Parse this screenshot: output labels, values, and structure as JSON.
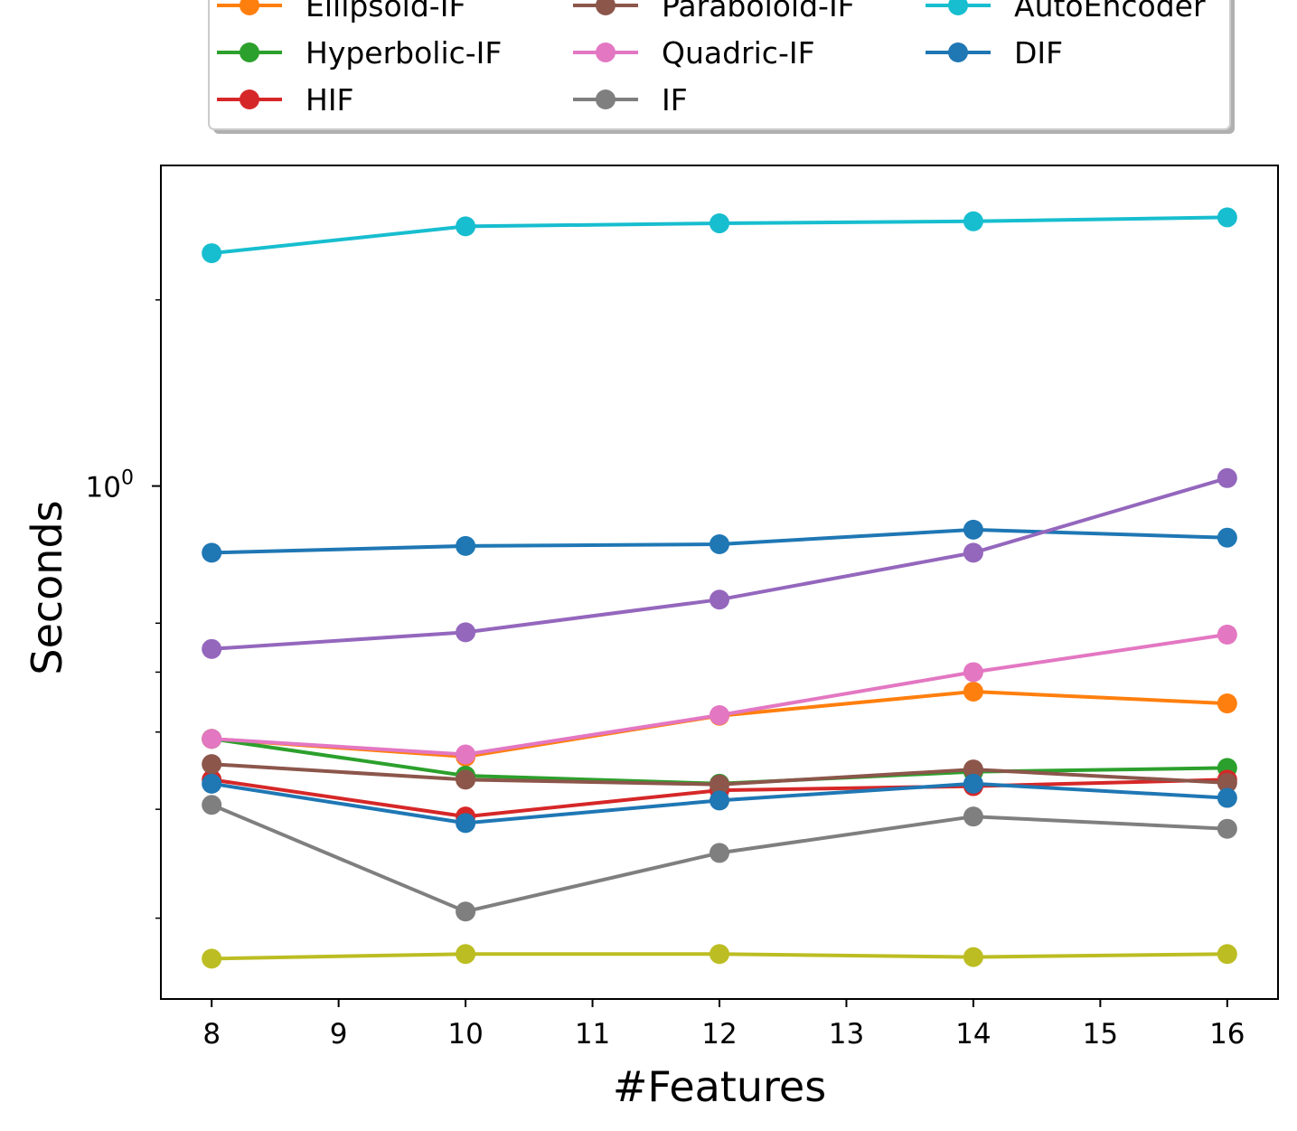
{
  "chart_data": {
    "type": "line",
    "xlabel": "#Features",
    "ylabel": "Seconds",
    "yscale": "log",
    "xlim": [
      7.6,
      16.4
    ],
    "ylim": [
      0.148,
      3.3
    ],
    "x_ticks": [
      "8",
      "9",
      "10",
      "11",
      "12",
      "13",
      "14",
      "15",
      "16"
    ],
    "y_major_ticks": [
      {
        "value": 1,
        "base": "10",
        "exp": "0"
      }
    ],
    "y_minor_ticks": [
      0.2,
      0.3,
      0.4,
      0.5,
      0.6,
      2
    ],
    "x": [
      8,
      10,
      12,
      14,
      16
    ],
    "legend_location": "top, outside plot",
    "series": [
      {
        "name": "Ellipsoid-IF",
        "color": "#ff7f0e",
        "values": [
          0.39,
          0.365,
          0.425,
          0.465,
          0.445
        ],
        "in_legend": true
      },
      {
        "name": "Hyperbolic-IF",
        "color": "#2ca02c",
        "values": [
          0.39,
          0.34,
          0.33,
          0.345,
          0.35
        ],
        "in_legend": true
      },
      {
        "name": "HIF",
        "color": "#d62728",
        "values": [
          0.335,
          0.292,
          0.322,
          0.327,
          0.335
        ],
        "in_legend": true
      },
      {
        "name": "Paraboloid-IF",
        "color": "#8c564b",
        "values": [
          0.355,
          0.335,
          0.329,
          0.348,
          0.331
        ],
        "in_legend": true
      },
      {
        "name": "Quadric-IF",
        "color": "#e377c2",
        "values": [
          0.39,
          0.368,
          0.426,
          0.5,
          0.575
        ],
        "in_legend": true
      },
      {
        "name": "IF",
        "color": "#7f7f7f",
        "values": [
          0.305,
          0.205,
          0.255,
          0.292,
          0.279
        ],
        "in_legend": true
      },
      {
        "name": "AutoEncoder",
        "color": "#17becf",
        "values": [
          2.38,
          2.63,
          2.66,
          2.68,
          2.72
        ],
        "in_legend": true
      },
      {
        "name": "DIF",
        "color": "#1f77b4",
        "values": [
          0.78,
          0.8,
          0.805,
          0.85,
          0.825
        ],
        "in_legend": true
      },
      {
        "name": "",
        "color": "#9467bd",
        "values": [
          0.545,
          0.58,
          0.655,
          0.78,
          1.03
        ],
        "in_legend": false
      },
      {
        "name": "",
        "color": "#bcbd22",
        "values": [
          0.172,
          0.175,
          0.175,
          0.173,
          0.175
        ],
        "in_legend": false
      },
      {
        "name": "",
        "color": "#1f77b4",
        "values": [
          0.33,
          0.285,
          0.31,
          0.33,
          0.313
        ],
        "in_legend": false
      }
    ]
  }
}
